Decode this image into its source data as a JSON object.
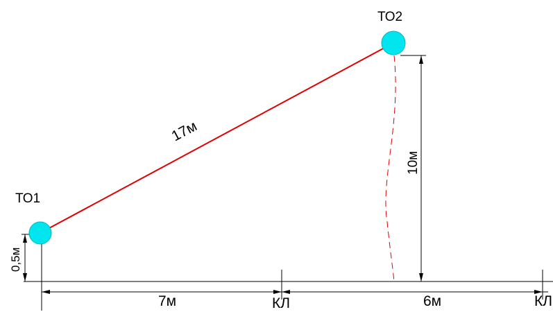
{
  "points": {
    "to1": "ТО1",
    "to2": "ТО2"
  },
  "dimensions": {
    "span": "17м",
    "height_to2": "10м",
    "height_to1": "0,5м",
    "left_run": "7м",
    "right_run": "6м"
  },
  "markers": {
    "kl_1": "КЛ",
    "kl_2": "КЛ"
  },
  "colors": {
    "node": "#00e5ee",
    "span_line": "#e00000",
    "dimension": "#000000"
  }
}
